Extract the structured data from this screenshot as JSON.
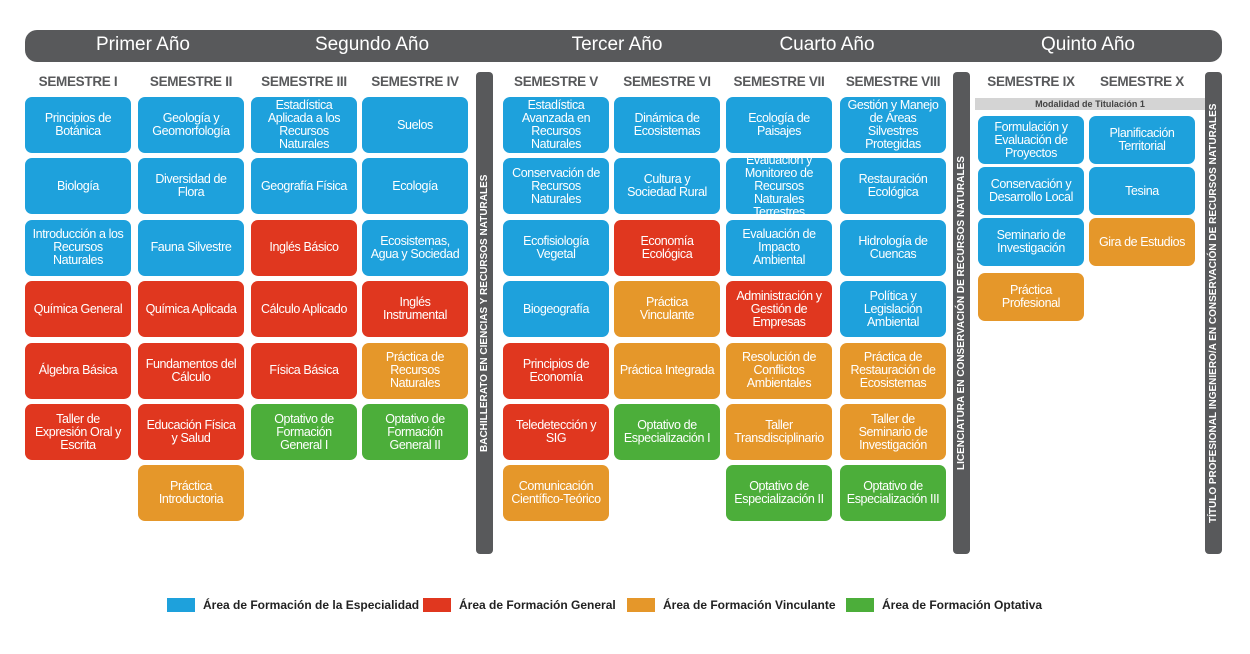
{
  "years": [
    {
      "name": "Primer Año"
    },
    {
      "name": "Segundo Año"
    },
    {
      "name": "Tercer Año"
    },
    {
      "name": "Cuarto Año"
    },
    {
      "name": "Quinto Año"
    }
  ],
  "semesters": [
    {
      "name": "SEMESTRE I",
      "courses": [
        {
          "name": "Principios de Botánica",
          "color": "#1ea1dc"
        },
        {
          "name": "Biología",
          "color": "#1ea1dc"
        },
        {
          "name": "Introducción a los Recursos Naturales",
          "color": "#1ea1dc"
        },
        {
          "name": "Química General",
          "color": "#e0371f"
        },
        {
          "name": "Álgebra Básica",
          "color": "#e0371f"
        },
        {
          "name": "Taller de Expresión Oral y Escrita",
          "color": "#e0371f"
        }
      ]
    },
    {
      "name": "SEMESTRE II",
      "courses": [
        {
          "name": "Geología y Geomorfología",
          "color": "#1ea1dc"
        },
        {
          "name": "Diversidad de Flora",
          "color": "#1ea1dc"
        },
        {
          "name": "Fauna Silvestre",
          "color": "#1ea1dc"
        },
        {
          "name": "Química Aplicada",
          "color": "#e0371f"
        },
        {
          "name": "Fundamentos del Cálculo",
          "color": "#e0371f"
        },
        {
          "name": "Educación Física y Salud",
          "color": "#e0371f"
        },
        {
          "name": "Práctica Introductoria",
          "color": "#e5972a"
        }
      ]
    },
    {
      "name": "SEMESTRE III",
      "courses": [
        {
          "name": "Estadística Aplicada a los Recursos Naturales",
          "color": "#1ea1dc"
        },
        {
          "name": "Geografía Física",
          "color": "#1ea1dc"
        },
        {
          "name": "Inglés Básico",
          "color": "#e0371f"
        },
        {
          "name": "Cálculo Aplicado",
          "color": "#e0371f"
        },
        {
          "name": "Física Básica",
          "color": "#e0371f"
        },
        {
          "name": "Optativo de Formación General I",
          "color": "#4cae3a"
        }
      ]
    },
    {
      "name": "SEMESTRE IV",
      "courses": [
        {
          "name": "Suelos",
          "color": "#1ea1dc"
        },
        {
          "name": "Ecología",
          "color": "#1ea1dc"
        },
        {
          "name": "Ecosistemas, Agua y Sociedad",
          "color": "#1ea1dc"
        },
        {
          "name": "Inglés Instrumental",
          "color": "#e0371f"
        },
        {
          "name": "Práctica de Recursos Naturales",
          "color": "#e5972a"
        },
        {
          "name": "Optativo de Formación General II",
          "color": "#4cae3a"
        }
      ]
    },
    {
      "name": "SEMESTRE V",
      "courses": [
        {
          "name": "Estadística Avanzada en Recursos Naturales",
          "color": "#1ea1dc"
        },
        {
          "name": "Conservación de Recursos Naturales",
          "color": "#1ea1dc"
        },
        {
          "name": "Ecofisiología Vegetal",
          "color": "#1ea1dc"
        },
        {
          "name": "Biogeografía",
          "color": "#1ea1dc"
        },
        {
          "name": "Principios de Economía",
          "color": "#e0371f"
        },
        {
          "name": "Teledetección y SIG",
          "color": "#e0371f"
        },
        {
          "name": "Comunicación Científico-Teórico",
          "color": "#e5972a"
        }
      ]
    },
    {
      "name": "SEMESTRE VI",
      "courses": [
        {
          "name": "Dinámica de Ecosistemas",
          "color": "#1ea1dc"
        },
        {
          "name": "Cultura y Sociedad Rural",
          "color": "#1ea1dc"
        },
        {
          "name": "Economía Ecológica",
          "color": "#e0371f"
        },
        {
          "name": "Práctica Vinculante",
          "color": "#e5972a"
        },
        {
          "name": "Práctica Integrada",
          "color": "#e5972a"
        },
        {
          "name": "Optativo de Especialización I",
          "color": "#4cae3a"
        }
      ]
    },
    {
      "name": "SEMESTRE VII",
      "courses": [
        {
          "name": "Ecología de Paisajes",
          "color": "#1ea1dc"
        },
        {
          "name": "Evaluación y Monitoreo de Recursos Naturales Terrestres",
          "color": "#1ea1dc"
        },
        {
          "name": "Evaluación de Impacto Ambiental",
          "color": "#1ea1dc"
        },
        {
          "name": "Administración y Gestión de Empresas",
          "color": "#e0371f"
        },
        {
          "name": "Resolución de Conflictos Ambientales",
          "color": "#e5972a"
        },
        {
          "name": "Taller Transdisciplinario",
          "color": "#e5972a"
        },
        {
          "name": "Optativo de Especialización II",
          "color": "#4cae3a"
        }
      ]
    },
    {
      "name": "SEMESTRE VIII",
      "courses": [
        {
          "name": "Gestión y Manejo de Áreas Silvestres Protegidas",
          "color": "#1ea1dc"
        },
        {
          "name": "Restauración Ecológica",
          "color": "#1ea1dc"
        },
        {
          "name": "Hidrología de Cuencas",
          "color": "#1ea1dc"
        },
        {
          "name": "Política y Legislación Ambiental",
          "color": "#1ea1dc"
        },
        {
          "name": "Práctica de Restauración de Ecosistemas",
          "color": "#e5972a"
        },
        {
          "name": "Taller de Seminario de Investigación",
          "color": "#e5972a"
        },
        {
          "name": "Optativo de Especialización III",
          "color": "#4cae3a"
        }
      ]
    },
    {
      "name": "SEMESTRE IX",
      "courses": [
        {
          "name": "Formulación y Evaluación de Proyectos",
          "color": "#1ea1dc"
        },
        {
          "name": "Conservación y Desarrollo Local",
          "color": "#1ea1dc"
        },
        {
          "name": "Seminario de Investigación",
          "color": "#1ea1dc"
        },
        {
          "name": "Práctica Profesional",
          "color": "#e5972a"
        }
      ]
    },
    {
      "name": "SEMESTRE X",
      "courses": [
        {
          "name": "Planificación Territorial",
          "color": "#1ea1dc"
        },
        {
          "name": "Tesina",
          "color": "#1ea1dc"
        },
        {
          "name": "Gira de Estudios",
          "color": "#e5972a"
        }
      ]
    }
  ],
  "modality_label": "Modalidad de Titulación 1",
  "degrees": [
    {
      "name": "BACHILLERATO EN CIENCIAS Y RECURSOS NATURALES"
    },
    {
      "name": "LICENCIATURA EN CONSERVACIÓN DE RECURSOS NATURALES"
    },
    {
      "name": "TÍTULO PROFESIONAL INGENIERO/A EN CONSERVACIÓN DE RECURSOS NATURALES"
    }
  ],
  "legend": [
    {
      "label": "Área de Formación de la Especialidad",
      "color": "#1ea1dc"
    },
    {
      "label": "Área de Formación General",
      "color": "#e0371f"
    },
    {
      "label": "Área de Formación Vinculante",
      "color": "#e5972a"
    },
    {
      "label": "Área de Formación Optativa",
      "color": "#4cae3a"
    }
  ]
}
